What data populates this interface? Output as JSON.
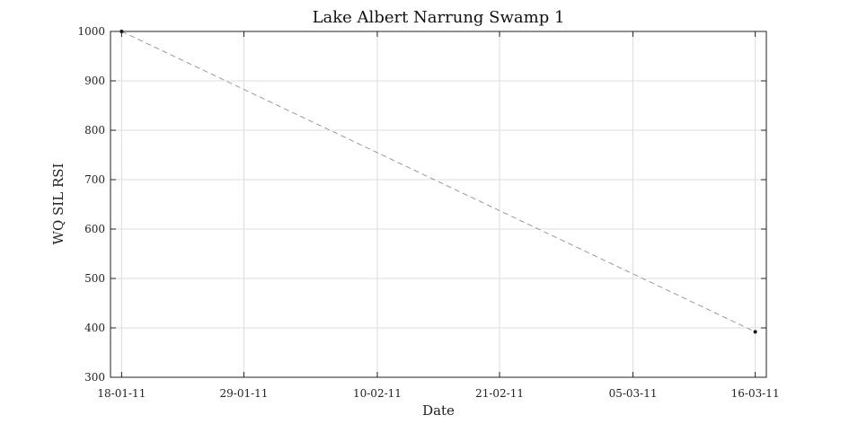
{
  "chart_data": {
    "type": "line",
    "title": "Lake Albert Narrung Swamp 1",
    "xlabel": "Date",
    "ylabel": "WQ SIL RSI",
    "x_ticks": [
      "18-01-11",
      "29-01-11",
      "10-02-11",
      "21-02-11",
      "05-03-11",
      "16-03-11"
    ],
    "y_ticks": [
      "300",
      "400",
      "500",
      "600",
      "700",
      "800",
      "900",
      "1000"
    ],
    "ylim": [
      300,
      1000
    ],
    "xlim": [
      "2011-01-17",
      "2011-03-17"
    ],
    "grid": true,
    "series": [
      {
        "x": [
          "2011-01-18",
          "2011-03-16"
        ],
        "y": [
          1000,
          392
        ],
        "line_style": "dashed",
        "line_color": "#999999",
        "marker_color": "#111111"
      }
    ]
  }
}
